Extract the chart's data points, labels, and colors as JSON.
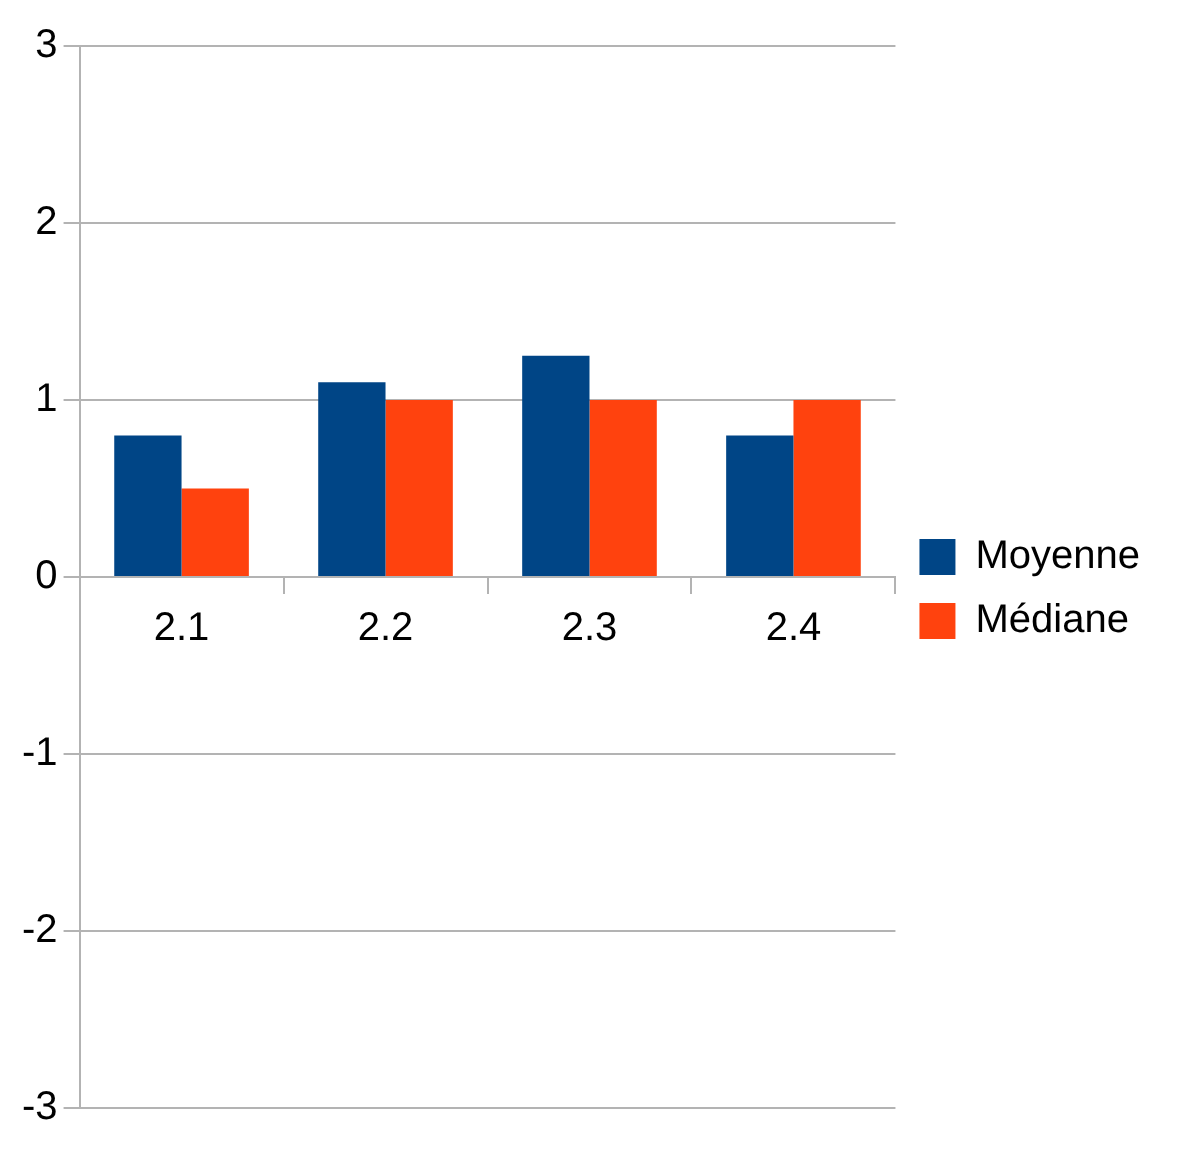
{
  "chart_data": {
    "type": "bar",
    "categories": [
      "2.1",
      "2.2",
      "2.3",
      "2.4"
    ],
    "series": [
      {
        "name": "Moyenne",
        "color": "#004586",
        "values": [
          0.8,
          1.1,
          1.25,
          0.8
        ]
      },
      {
        "name": "Médiane",
        "color": "#ff420e",
        "values": [
          0.5,
          1.0,
          1.0,
          1.0
        ]
      }
    ],
    "ylim": [
      -3,
      3
    ],
    "yticks": [
      -3,
      -2,
      -1,
      0,
      1,
      2,
      3
    ],
    "grid": "y",
    "legend": "right"
  }
}
